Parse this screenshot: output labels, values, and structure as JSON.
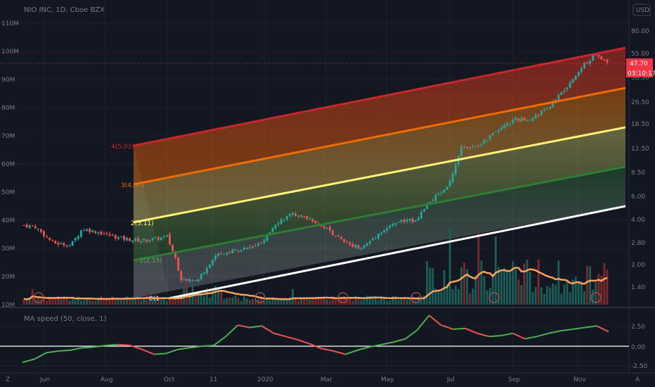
{
  "header": {
    "symbol": "NIO INC, 1D, Cboe BZX",
    "currency": "USD"
  },
  "indicator_label": "MA speed (50, close, 1)",
  "current_price": "47.70",
  "countdown": "03:10:17",
  "corner": {
    "left": "Z",
    "right": "A"
  },
  "colors": {
    "bg": "#131722",
    "grid": "#1e222d",
    "up": "#26a69a",
    "down": "#ef5350",
    "ma": "#f7a35c",
    "speed_up": "#4caf50",
    "speed_down": "#ef5350",
    "fib_red": "#c62828",
    "fib_orange": "#ef6c00",
    "fib_yellow": "#fff176",
    "fib_green": "#2e7d32",
    "fib_white": "#ffffff",
    "price_tag": "#f23645"
  },
  "chart_data": [
    {
      "type": "candlestick",
      "title": "NIO INC, 1D, Cboe BZX",
      "x_ticks": [
        "Jun",
        "Aug",
        "Oct",
        "11",
        "2020",
        "Mar",
        "May",
        "Jul",
        "Sep",
        "Nov"
      ],
      "y_ticks_right": [
        "80.00",
        "55.00",
        "38.50",
        "26.50",
        "18.50",
        "12.50",
        "8.50",
        "6.00",
        "4.00",
        "2.80",
        "2.00",
        "1.40"
      ],
      "y_ticks_left": [
        "110M",
        "100M",
        "90M",
        "80M",
        "70M",
        "60M",
        "50M",
        "40M",
        "30M",
        "20M",
        "10M"
      ],
      "scale": "log",
      "price_waypoints": [
        {
          "t": 0,
          "p": 3.7
        },
        {
          "t": 0.02,
          "p": 3.6
        },
        {
          "t": 0.05,
          "p": 2.8
        },
        {
          "t": 0.08,
          "p": 2.7
        },
        {
          "t": 0.1,
          "p": 3.5
        },
        {
          "t": 0.13,
          "p": 3.3
        },
        {
          "t": 0.17,
          "p": 3.0
        },
        {
          "t": 0.2,
          "p": 2.9
        },
        {
          "t": 0.23,
          "p": 3.0
        },
        {
          "t": 0.245,
          "p": 3.1
        },
        {
          "t": 0.26,
          "p": 2.2
        },
        {
          "t": 0.27,
          "p": 1.55
        },
        {
          "t": 0.3,
          "p": 1.6
        },
        {
          "t": 0.33,
          "p": 2.3
        },
        {
          "t": 0.36,
          "p": 2.5
        },
        {
          "t": 0.39,
          "p": 2.6
        },
        {
          "t": 0.41,
          "p": 2.8
        },
        {
          "t": 0.43,
          "p": 3.8
        },
        {
          "t": 0.46,
          "p": 4.4
        },
        {
          "t": 0.49,
          "p": 4.1
        },
        {
          "t": 0.52,
          "p": 3.5
        },
        {
          "t": 0.55,
          "p": 2.8
        },
        {
          "t": 0.58,
          "p": 2.6
        },
        {
          "t": 0.61,
          "p": 3.3
        },
        {
          "t": 0.64,
          "p": 3.9
        },
        {
          "t": 0.67,
          "p": 4.0
        },
        {
          "t": 0.7,
          "p": 5.5
        },
        {
          "t": 0.73,
          "p": 7.2
        },
        {
          "t": 0.75,
          "p": 12.5
        },
        {
          "t": 0.78,
          "p": 13.2
        },
        {
          "t": 0.81,
          "p": 16
        },
        {
          "t": 0.84,
          "p": 19.5
        },
        {
          "t": 0.87,
          "p": 19.5
        },
        {
          "t": 0.9,
          "p": 24
        },
        {
          "t": 0.93,
          "p": 32
        },
        {
          "t": 0.96,
          "p": 46
        },
        {
          "t": 0.98,
          "p": 54
        },
        {
          "t": 1.0,
          "p": 47.7
        }
      ],
      "volume_ma": "orange line (volume moving average)",
      "earnings_markers": 8
    },
    {
      "type": "line",
      "title": "MA speed (50, close, 1)",
      "y_ticks": [
        "2.50",
        "0.00",
        "-2.50"
      ],
      "series": [
        {
          "values": [
            -2.0,
            -1.6,
            -0.8,
            -0.6,
            -0.5,
            -0.2,
            -0.1,
            0.1,
            0.2,
            0.1,
            -0.4,
            -1.0,
            -0.9,
            -0.4,
            -0.2,
            0.0,
            0.1,
            1.2,
            2.6,
            2.3,
            2.5,
            1.6,
            1.2,
            0.8,
            0.3,
            -0.3,
            -0.6,
            -1.0,
            -0.5,
            -0.1,
            0.2,
            0.5,
            0.9,
            2.0,
            3.8,
            2.6,
            2.1,
            2.2,
            1.6,
            1.2,
            1.3,
            1.6,
            0.9,
            1.2,
            1.6,
            1.9,
            2.1,
            2.3,
            2.5,
            1.8
          ]
        }
      ],
      "zero_line": 0.0
    }
  ],
  "fib_levels": [
    {
      "label": "4(5.03)"
    },
    {
      "label": "3(4.07)"
    },
    {
      "label": "2(3.11)"
    },
    {
      "label": "1(2.15)"
    },
    {
      "label": "0(1"
    }
  ]
}
